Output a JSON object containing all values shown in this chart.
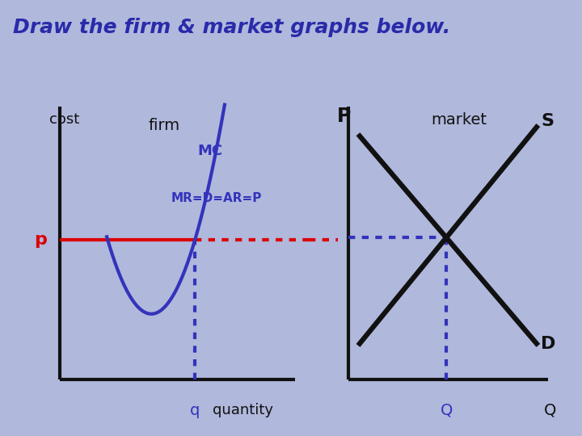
{
  "title": "Draw the firm & market graphs below.",
  "title_fontsize": 18,
  "title_color": "#2a2aaa",
  "bg_color": "#b0b8dc",
  "firm_label": "firm",
  "market_label": "market",
  "cost_label": "cost",
  "p_label": "p",
  "q_label": "q",
  "quantity_label": "quantity",
  "P_label": "P",
  "Q_label": "Q",
  "Q_axis_label": "Q",
  "S_label": "S",
  "D_label": "D",
  "MC_label": "MC",
  "MR_label": "MR=D=AR=P",
  "mc_color": "#3333bb",
  "mr_solid_color": "#dd0000",
  "mr_dotted_color": "#dd0000",
  "blue_dotted_color": "#3333bb",
  "sd_color": "#111111",
  "label_blue": "#3333bb",
  "label_black": "#111111",
  "label_red": "#dd0000",
  "axis_color": "#111111",
  "axis_lw": 3.0,
  "mc_lw": 3.0,
  "mr_lw": 3.0,
  "sd_lw": 4.5,
  "dot_lw": 3.0
}
